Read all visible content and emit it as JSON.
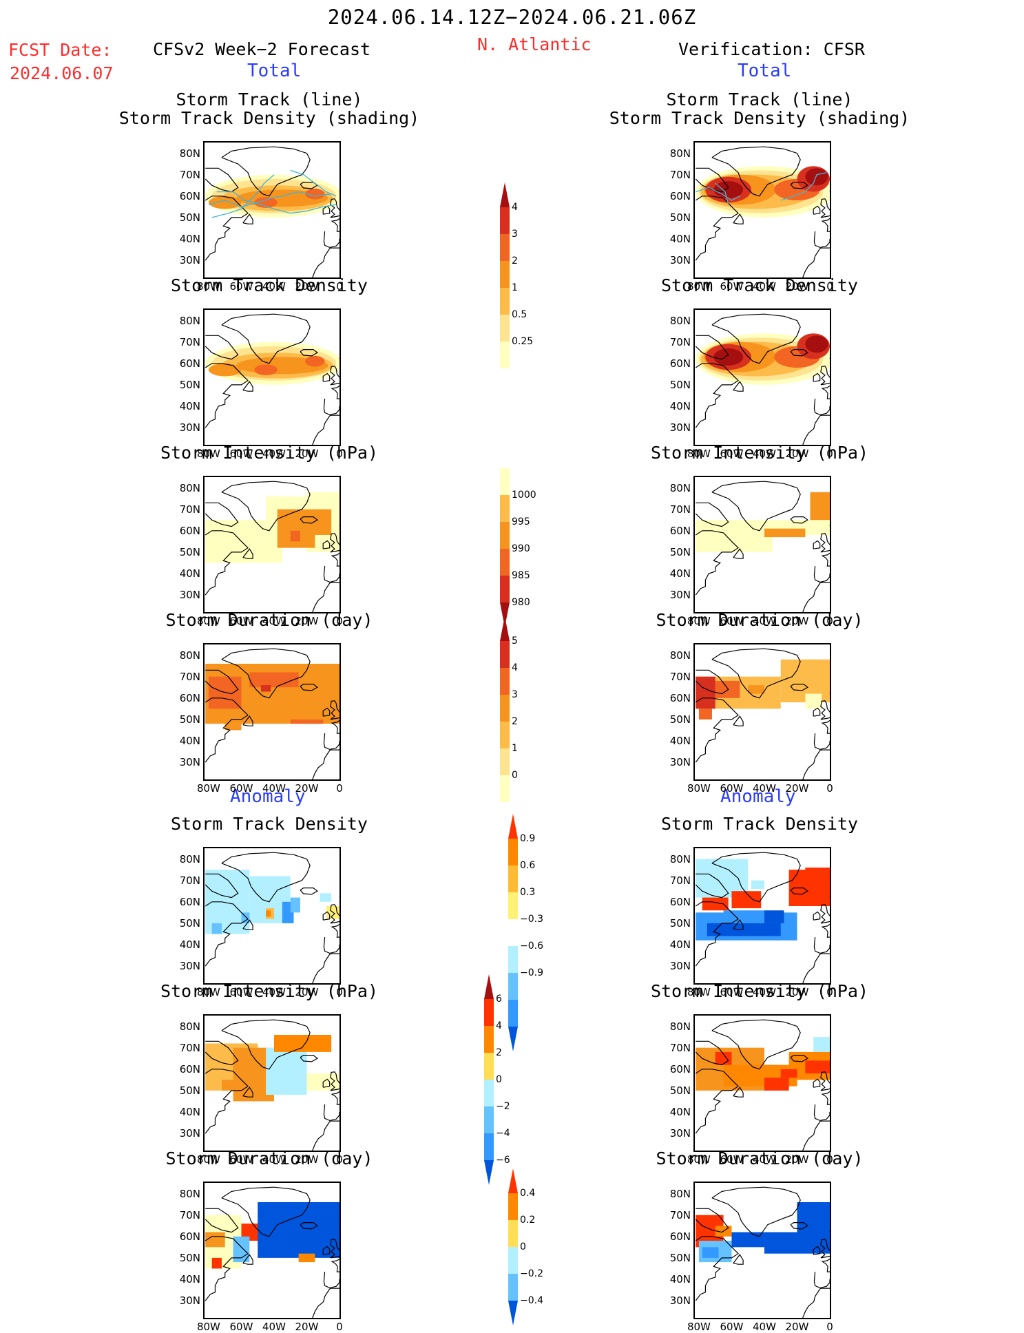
{
  "header": {
    "date_range": "2024.06.14.12Z−2024.06.21.06Z",
    "fcst_label": "FCST Date:",
    "fcst_date": "2024.06.07",
    "forecast_title": "CFSv2 Week−2 Forecast",
    "region": "N. Atlantic",
    "verification_title": "Verification: CFSR"
  },
  "sections": {
    "total": "Total",
    "anomaly": "Anomaly"
  },
  "panel_titles": {
    "track_line": "Storm Track (line)",
    "track_shading": "Storm Track Density (shading)",
    "density": "Storm Track Density",
    "intensity": "Storm Intensity (hPa)",
    "duration": "Storm Duration (day)"
  },
  "axes": {
    "lat_ticks": [
      "80N",
      "70N",
      "60N",
      "50N",
      "40N",
      "30N"
    ],
    "lon_ticks": [
      "80W",
      "60W",
      "40W",
      "20W",
      "0"
    ]
  },
  "colorbars": {
    "density_total": {
      "labels": [
        "4",
        "3",
        "2",
        "1",
        "0.5",
        "0.25"
      ],
      "colors": [
        "#a50f0f",
        "#d7301f",
        "#f26522",
        "#f7941d",
        "#fdbb4a",
        "#fee391",
        "#ffffbf"
      ]
    },
    "intensity_total": {
      "labels": [
        "1000",
        "995",
        "990",
        "985",
        "980"
      ],
      "colors": [
        "#ffffbf",
        "#fdbb4a",
        "#f7941d",
        "#f26522",
        "#d7301f",
        "#a50f0f"
      ]
    },
    "duration_total": {
      "labels": [
        "5",
        "4",
        "3",
        "2",
        "1",
        "0"
      ],
      "colors": [
        "#a50f0f",
        "#d7301f",
        "#f26522",
        "#f7941d",
        "#fdbb4a",
        "#fee391",
        "#ffffbf"
      ]
    },
    "density_anom": {
      "labels": [
        "0.9",
        "0.6",
        "0.3",
        "−0.3",
        "−0.6",
        "−0.9"
      ],
      "colors": [
        "#ff3300",
        "#ff8800",
        "#ffbb33",
        "#fff176",
        "#ffffff",
        "#b3f0ff",
        "#66c2ff",
        "#3399ff",
        "#0055dd"
      ]
    },
    "intensity_anom": {
      "labels": [
        "6",
        "4",
        "2",
        "0",
        "−2",
        "−4",
        "−6"
      ],
      "colors": [
        "#a50f0f",
        "#ff3300",
        "#ff8800",
        "#ffdd55",
        "#b3f0ff",
        "#66c2ff",
        "#3399ff",
        "#0055dd"
      ]
    },
    "duration_anom": {
      "labels": [
        "0.4",
        "0.2",
        "0",
        "−0.2",
        "−0.4"
      ],
      "colors": [
        "#ff3300",
        "#ff8800",
        "#ffdd55",
        "#b3f0ff",
        "#66c2ff",
        "#0055dd"
      ]
    }
  }
}
